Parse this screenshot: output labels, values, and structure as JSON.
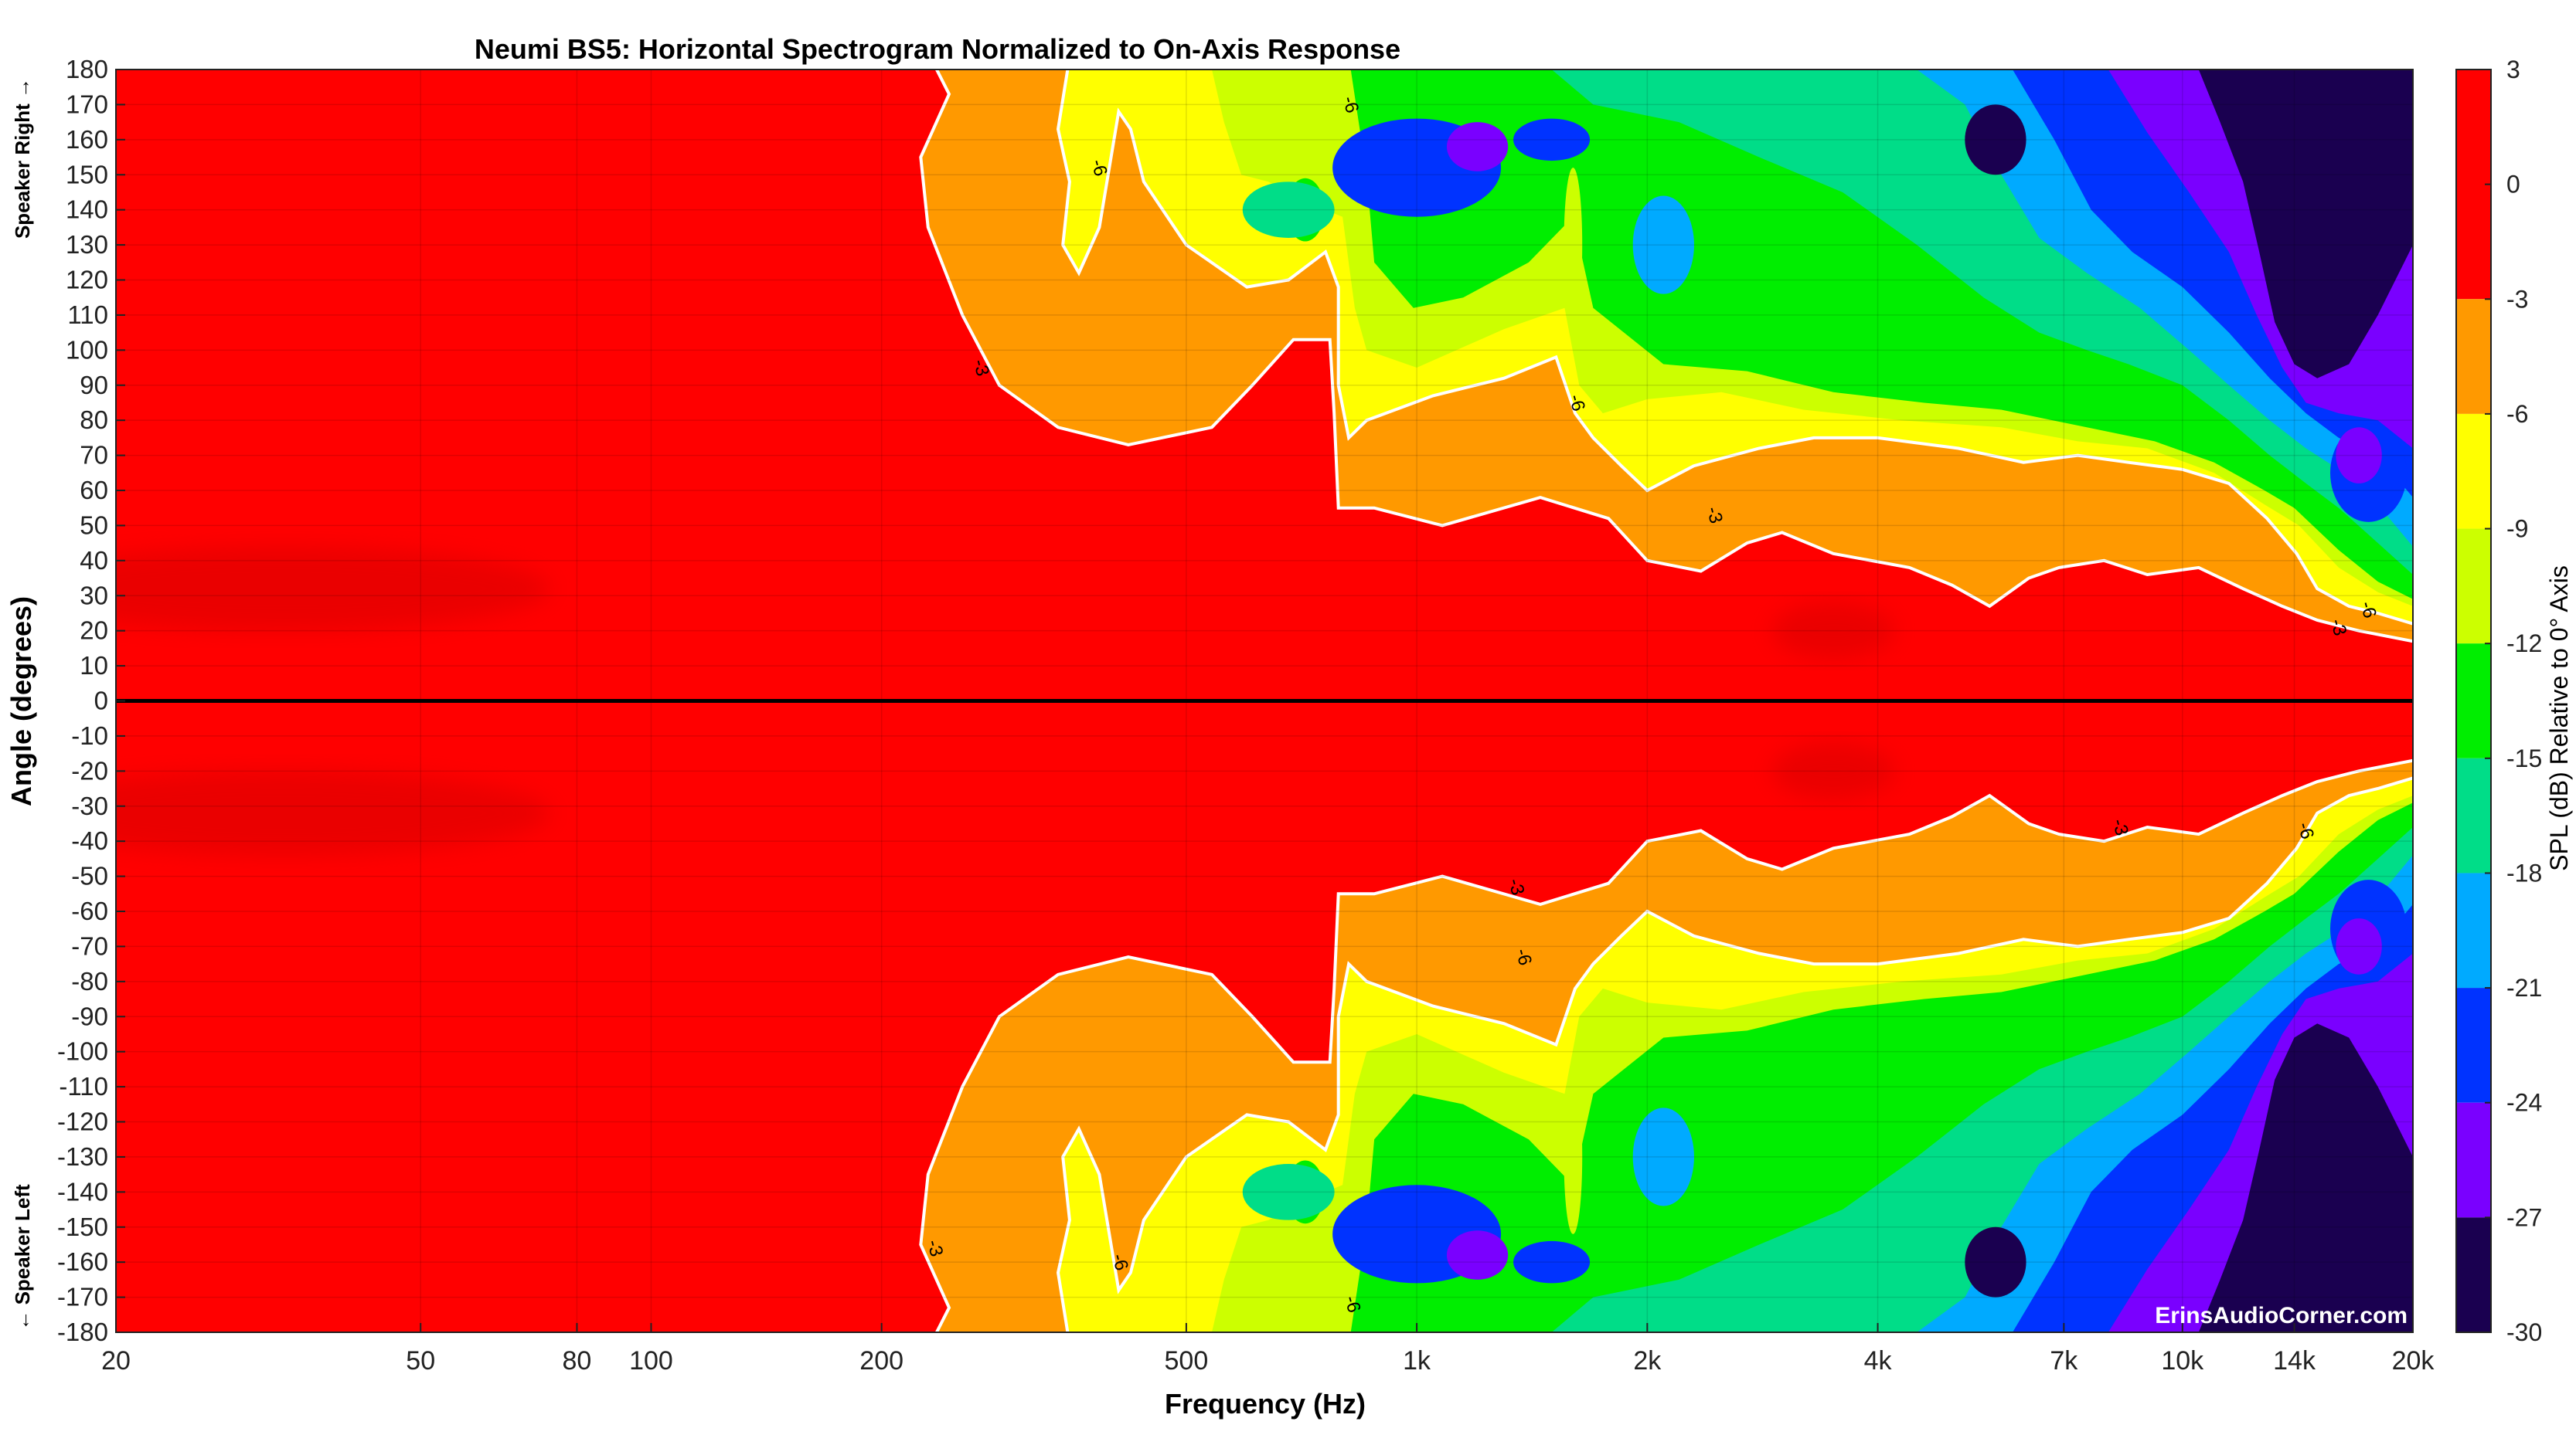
{
  "chart_data": {
    "type": "heatmap",
    "title": "Neumi BS5: Horizontal Spectrogram Normalized to On-Axis Response",
    "xlabel": "Frequency (Hz)",
    "ylabel": "Angle (degrees)",
    "y_side_top": "Speaker Right →",
    "y_side_bottom": "← Speaker Left",
    "x_scale": "log",
    "xlim": [
      20,
      20000
    ],
    "ylim": [
      -180,
      180
    ],
    "x_ticks": [
      {
        "value": 20,
        "label": "20"
      },
      {
        "value": 50,
        "label": "50"
      },
      {
        "value": 80,
        "label": "80"
      },
      {
        "value": 100,
        "label": "100"
      },
      {
        "value": 200,
        "label": "200"
      },
      {
        "value": 500,
        "label": "500"
      },
      {
        "value": 1000,
        "label": "1k"
      },
      {
        "value": 2000,
        "label": "2k"
      },
      {
        "value": 4000,
        "label": "4k"
      },
      {
        "value": 7000,
        "label": "7k"
      },
      {
        "value": 10000,
        "label": "10k"
      },
      {
        "value": 14000,
        "label": "14k"
      },
      {
        "value": 20000,
        "label": "20k"
      }
    ],
    "y_ticks": [
      180,
      170,
      160,
      150,
      140,
      130,
      120,
      110,
      100,
      90,
      80,
      70,
      60,
      50,
      40,
      30,
      20,
      10,
      0,
      -10,
      -20,
      -30,
      -40,
      -50,
      -60,
      -70,
      -80,
      -90,
      -100,
      -110,
      -120,
      -130,
      -140,
      -150,
      -160,
      -170,
      -180
    ],
    "colorbar": {
      "label": "SPL (dB) Relative to 0° Axis",
      "range": [
        -30,
        3
      ],
      "ticks": [
        3,
        0,
        -3,
        -6,
        -9,
        -12,
        -15,
        -18,
        -21,
        -24,
        -27,
        -30
      ],
      "bands": [
        {
          "from": -3,
          "to": 3,
          "color": "#ff0000"
        },
        {
          "from": -6,
          "to": -3,
          "color": "#ff9900"
        },
        {
          "from": -9,
          "to": -6,
          "color": "#ffff00"
        },
        {
          "from": -12,
          "to": -9,
          "color": "#ccff00"
        },
        {
          "from": -15,
          "to": -12,
          "color": "#00ee00"
        },
        {
          "from": -18,
          "to": -15,
          "color": "#00dd88"
        },
        {
          "from": -21,
          "to": -18,
          "color": "#00aaff"
        },
        {
          "from": -24,
          "to": -21,
          "color": "#0033ff"
        },
        {
          "from": -27,
          "to": -24,
          "color": "#7a00ff"
        },
        {
          "from": -30,
          "to": -27,
          "color": "#1a0050"
        }
      ]
    },
    "contour_lines": [
      {
        "level": -3,
        "label": "-3",
        "color": "#ffffff"
      },
      {
        "level": -6,
        "label": "-6",
        "color": "#ffffff"
      }
    ],
    "contour_labels": [
      {
        "text": "-3",
        "freq": 270,
        "angle": 95
      },
      {
        "text": "-6",
        "freq": 385,
        "angle": 152
      },
      {
        "text": "-6",
        "freq": 820,
        "angle": 170
      },
      {
        "text": "-6",
        "freq": 1620,
        "angle": 85
      },
      {
        "text": "-3",
        "freq": 2450,
        "angle": 53
      },
      {
        "text": "-6",
        "freq": 17500,
        "angle": 26
      },
      {
        "text": "-3",
        "freq": 16000,
        "angle": 21
      },
      {
        "text": "-3",
        "freq": 1350,
        "angle": -53
      },
      {
        "text": "-6",
        "freq": 1380,
        "angle": -73
      },
      {
        "text": "-3",
        "freq": 8300,
        "angle": -36
      },
      {
        "text": "-6",
        "freq": 14500,
        "angle": -37
      },
      {
        "text": "-3",
        "freq": 235,
        "angle": -156
      },
      {
        "text": "-6",
        "freq": 410,
        "angle": -160
      },
      {
        "text": "-6",
        "freq": 825,
        "angle": -172
      }
    ],
    "reference_line_angle": 0,
    "contour_bounds": [
      {
        "level": -3,
        "points": [
          [
            20,
            180
          ],
          [
            236,
            180
          ],
          [
            245,
            173
          ],
          [
            225,
            155
          ],
          [
            230,
            135
          ],
          [
            255,
            110
          ],
          [
            285,
            90
          ],
          [
            340,
            78
          ],
          [
            420,
            73
          ],
          [
            540,
            78
          ],
          [
            610,
            90
          ],
          [
            690,
            103
          ],
          [
            770,
            103
          ],
          [
            780,
            82
          ],
          [
            790,
            55
          ],
          [
            880,
            55
          ],
          [
            1080,
            50
          ],
          [
            1450,
            58
          ],
          [
            1780,
            52
          ],
          [
            2000,
            40
          ],
          [
            2350,
            37
          ],
          [
            2700,
            45
          ],
          [
            3000,
            48
          ],
          [
            3500,
            42
          ],
          [
            4400,
            38
          ],
          [
            5000,
            33
          ],
          [
            5600,
            27
          ],
          [
            6300,
            35
          ],
          [
            6900,
            38
          ],
          [
            7900,
            40
          ],
          [
            9000,
            36
          ],
          [
            10500,
            38
          ],
          [
            12000,
            32
          ],
          [
            13500,
            27
          ],
          [
            15000,
            23
          ],
          [
            17000,
            20
          ],
          [
            20000,
            17
          ]
        ]
      },
      {
        "level": -6,
        "points": [
          [
            20,
            180
          ],
          [
            350,
            180
          ],
          [
            340,
            163
          ],
          [
            352,
            148
          ],
          [
            345,
            130
          ],
          [
            362,
            122
          ],
          [
            385,
            135
          ],
          [
            408,
            168
          ],
          [
            423,
            163
          ],
          [
            440,
            148
          ],
          [
            500,
            130
          ],
          [
            600,
            118
          ],
          [
            680,
            120
          ],
          [
            760,
            128
          ],
          [
            790,
            118
          ],
          [
            790,
            90
          ],
          [
            815,
            75
          ],
          [
            860,
            80
          ],
          [
            1050,
            87
          ],
          [
            1300,
            92
          ],
          [
            1520,
            98
          ],
          [
            1610,
            82
          ],
          [
            1700,
            75
          ],
          [
            1850,
            67
          ],
          [
            2000,
            60
          ],
          [
            2300,
            67
          ],
          [
            2800,
            72
          ],
          [
            3300,
            75
          ],
          [
            4000,
            75
          ],
          [
            5100,
            72
          ],
          [
            6200,
            68
          ],
          [
            7300,
            70
          ],
          [
            8500,
            68
          ],
          [
            10000,
            66
          ],
          [
            11500,
            62
          ],
          [
            12900,
            52
          ],
          [
            14100,
            42
          ],
          [
            15000,
            32
          ],
          [
            16500,
            27
          ],
          [
            18000,
            25
          ],
          [
            20000,
            22
          ]
        ]
      },
      {
        "level": -9,
        "points": [
          [
            20,
            180
          ],
          [
            540,
            180
          ],
          [
            560,
            165
          ],
          [
            590,
            150
          ],
          [
            640,
            148
          ],
          [
            720,
            142
          ],
          [
            800,
            138
          ],
          [
            830,
            112
          ],
          [
            860,
            100
          ],
          [
            1000,
            95
          ],
          [
            1300,
            106
          ],
          [
            1560,
            112
          ],
          [
            1630,
            90
          ],
          [
            1750,
            82
          ],
          [
            2000,
            86
          ],
          [
            2500,
            88
          ],
          [
            3200,
            83
          ],
          [
            4300,
            80
          ],
          [
            5800,
            78
          ],
          [
            7300,
            74
          ],
          [
            9000,
            72
          ],
          [
            11000,
            65
          ],
          [
            12800,
            56
          ],
          [
            14200,
            50
          ],
          [
            16000,
            38
          ],
          [
            18000,
            31
          ],
          [
            20000,
            27
          ]
        ]
      },
      {
        "level": -12,
        "points": [
          [
            20,
            180
          ],
          [
            820,
            180
          ],
          [
            860,
            150
          ],
          [
            880,
            125
          ],
          [
            990,
            112
          ],
          [
            1150,
            115
          ],
          [
            1400,
            125
          ],
          [
            1600,
            138
          ],
          [
            1700,
            112
          ],
          [
            2100,
            96
          ],
          [
            2700,
            94
          ],
          [
            3500,
            88
          ],
          [
            4600,
            85
          ],
          [
            5800,
            83
          ],
          [
            7500,
            78
          ],
          [
            9200,
            74
          ],
          [
            11000,
            68
          ],
          [
            12800,
            60
          ],
          [
            14000,
            55
          ],
          [
            16000,
            43
          ],
          [
            18000,
            34
          ],
          [
            20000,
            29
          ]
        ]
      },
      {
        "level": -15,
        "points": [
          [
            20,
            180
          ],
          [
            1500,
            180
          ],
          [
            1700,
            170
          ],
          [
            2200,
            165
          ],
          [
            2800,
            155
          ],
          [
            3600,
            145
          ],
          [
            4500,
            130
          ],
          [
            5500,
            115
          ],
          [
            6500,
            105
          ],
          [
            7500,
            100
          ],
          [
            8500,
            96
          ],
          [
            10000,
            90
          ],
          [
            11500,
            80
          ],
          [
            13000,
            70
          ],
          [
            14500,
            62
          ],
          [
            16000,
            55
          ],
          [
            18000,
            45
          ],
          [
            20000,
            36
          ]
        ]
      },
      {
        "level": -18,
        "points": [
          [
            20,
            180
          ],
          [
            4500,
            180
          ],
          [
            5200,
            170
          ],
          [
            5800,
            150
          ],
          [
            6500,
            132
          ],
          [
            7500,
            122
          ],
          [
            8800,
            112
          ],
          [
            10200,
            100
          ],
          [
            11500,
            90
          ],
          [
            13000,
            80
          ],
          [
            14500,
            72
          ],
          [
            16000,
            66
          ],
          [
            18000,
            56
          ],
          [
            20000,
            44
          ]
        ]
      },
      {
        "level": -21,
        "points": [
          [
            20,
            180
          ],
          [
            6000,
            180
          ],
          [
            6800,
            160
          ],
          [
            7600,
            140
          ],
          [
            8600,
            128
          ],
          [
            10000,
            118
          ],
          [
            11500,
            105
          ],
          [
            13000,
            92
          ],
          [
            14500,
            82
          ],
          [
            16000,
            75
          ],
          [
            18000,
            70
          ],
          [
            20000,
            58
          ]
        ]
      },
      {
        "level": -24,
        "points": [
          [
            20,
            180
          ],
          [
            8000,
            180
          ],
          [
            9000,
            162
          ],
          [
            10200,
            145
          ],
          [
            11500,
            128
          ],
          [
            12500,
            110
          ],
          [
            13500,
            95
          ],
          [
            14500,
            85
          ],
          [
            16000,
            82
          ],
          [
            18000,
            80
          ],
          [
            20000,
            72
          ]
        ]
      },
      {
        "level": -27,
        "points": [
          [
            20,
            180
          ],
          [
            10500,
            180
          ],
          [
            11200,
            165
          ],
          [
            12000,
            148
          ],
          [
            12600,
            128
          ],
          [
            13200,
            108
          ],
          [
            14000,
            96
          ],
          [
            15000,
            92
          ],
          [
            16500,
            96
          ],
          [
            18000,
            110
          ],
          [
            20000,
            130
          ]
        ]
      }
    ],
    "blobs": [
      {
        "level": -12,
        "freq": 715,
        "angle": 140,
        "rx": 0.025,
        "ry": 9
      },
      {
        "level": -12,
        "freq": 715,
        "angle": -140,
        "rx": 0.025,
        "ry": 9
      },
      {
        "level": -15,
        "freq": 680,
        "angle": 140,
        "rx": 0.06,
        "ry": 8
      },
      {
        "level": -15,
        "freq": 680,
        "angle": -140,
        "rx": 0.06,
        "ry": 8
      },
      {
        "level": -21,
        "freq": 1000,
        "angle": 152,
        "rx": 0.11,
        "ry": 14
      },
      {
        "level": -21,
        "freq": 1000,
        "angle": -152,
        "rx": 0.11,
        "ry": 14
      },
      {
        "level": -24,
        "freq": 1200,
        "angle": 158,
        "rx": 0.04,
        "ry": 7
      },
      {
        "level": -24,
        "freq": 1200,
        "angle": -158,
        "rx": 0.04,
        "ry": 7
      },
      {
        "level": -21,
        "freq": 1500,
        "angle": 160,
        "rx": 0.05,
        "ry": 6
      },
      {
        "level": -21,
        "freq": 1500,
        "angle": -160,
        "rx": 0.05,
        "ry": 6
      },
      {
        "level": -18,
        "freq": 2100,
        "angle": 130,
        "rx": 0.04,
        "ry": 14
      },
      {
        "level": -18,
        "freq": 2100,
        "angle": -130,
        "rx": 0.04,
        "ry": 14
      },
      {
        "level": -9,
        "freq": 1600,
        "angle": 130,
        "rx": 0.012,
        "ry": 22
      },
      {
        "level": -9,
        "freq": 1600,
        "angle": -130,
        "rx": 0.012,
        "ry": 22
      },
      {
        "level": -27,
        "freq": 5700,
        "angle": 160,
        "rx": 0.04,
        "ry": 10
      },
      {
        "level": -27,
        "freq": 5700,
        "angle": -160,
        "rx": 0.04,
        "ry": 10
      },
      {
        "level": -21,
        "freq": 17500,
        "angle": 65,
        "rx": 0.05,
        "ry": 14
      },
      {
        "level": -21,
        "freq": 17500,
        "angle": -65,
        "rx": 0.05,
        "ry": 14
      },
      {
        "level": -24,
        "freq": 17000,
        "angle": 70,
        "rx": 0.03,
        "ry": 8
      },
      {
        "level": -24,
        "freq": 17000,
        "angle": -70,
        "rx": 0.03,
        "ry": 8
      },
      {
        "level": 1,
        "freq": 33,
        "angle": 32,
        "rx": 0.35,
        "ry": 12
      },
      {
        "level": 1,
        "freq": 33,
        "angle": -32,
        "rx": 0.35,
        "ry": 12
      },
      {
        "level": 1,
        "freq": 3500,
        "angle": 20,
        "rx": 0.08,
        "ry": 8
      },
      {
        "level": 1,
        "freq": 3500,
        "angle": -20,
        "rx": 0.08,
        "ry": 8
      }
    ],
    "watermark": "ErinsAudioCorner.com"
  }
}
